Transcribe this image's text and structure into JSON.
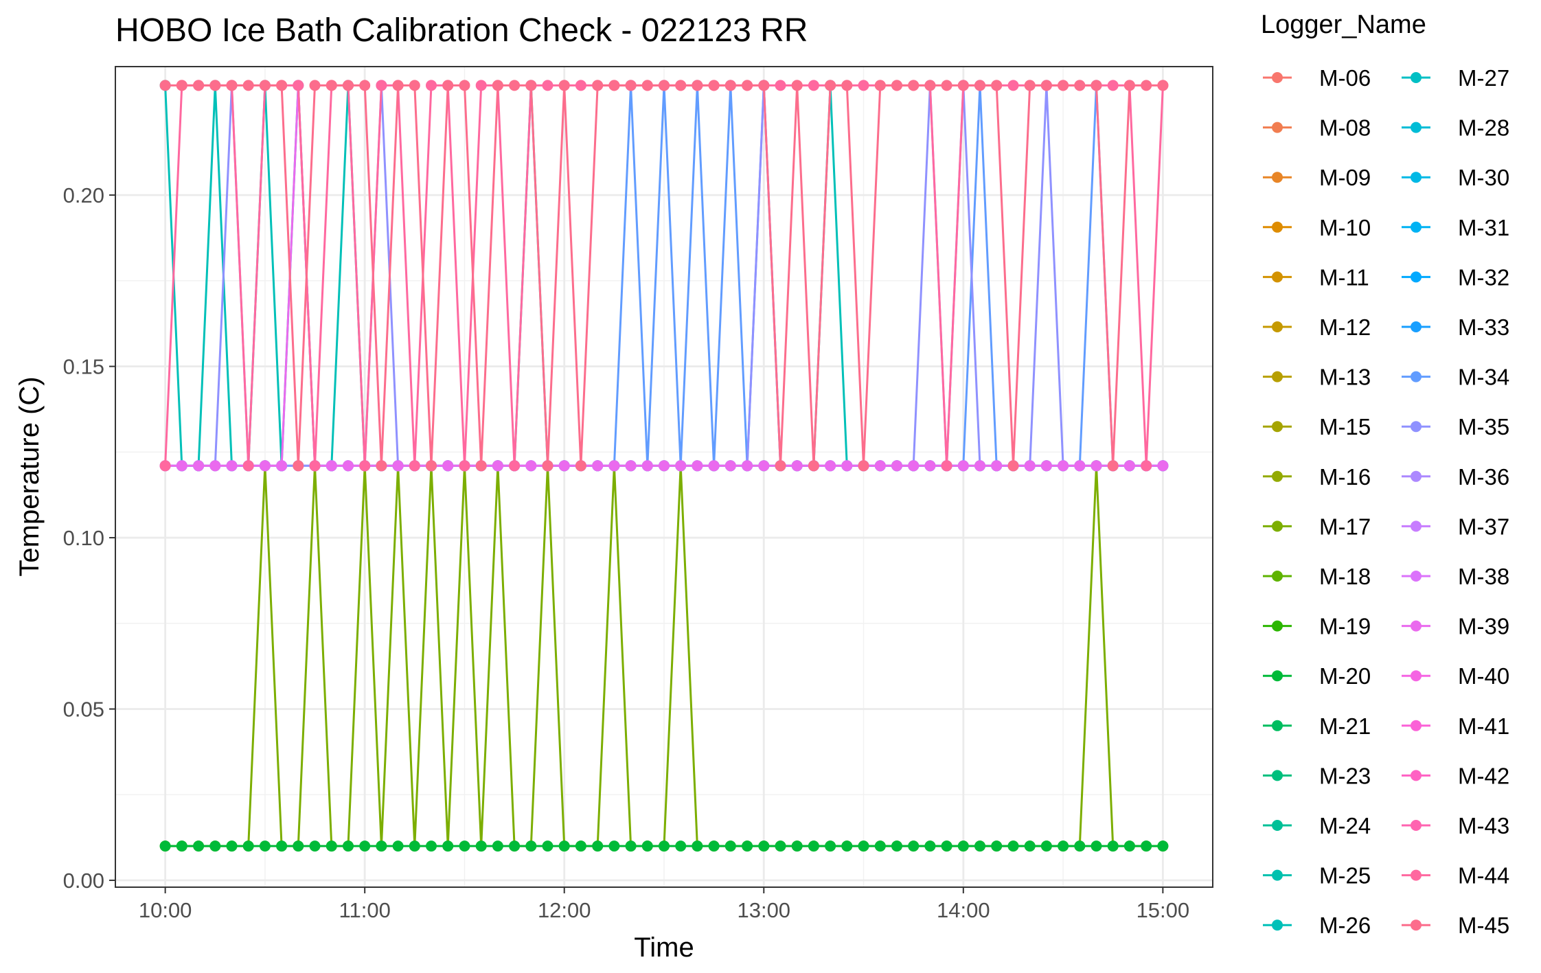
{
  "chart_data": {
    "type": "line",
    "title": "HOBO Ice Bath Calibration Check - 022123 RR",
    "xlabel": "Time",
    "ylabel": "Temperature (C)",
    "x_ticks": [
      "10:00",
      "11:00",
      "12:00",
      "13:00",
      "14:00",
      "15:00"
    ],
    "y_ticks": [
      "0.00",
      "0.05",
      "0.10",
      "0.15",
      "0.20"
    ],
    "xlim": [
      "09:45",
      "15:15"
    ],
    "ylim": [
      -0.002,
      0.2375
    ],
    "x_start": "10:00",
    "x_interval_minutes": 5,
    "x_end": "15:00",
    "measurement_levels": [
      0.01,
      0.121,
      0.232
    ],
    "grid": true,
    "legend": {
      "title": "Logger_Name",
      "position": "right",
      "columns": 2,
      "items": [
        {
          "name": "M-06",
          "color": "#F8766D"
        },
        {
          "name": "M-08",
          "color": "#F17D50"
        },
        {
          "name": "M-09",
          "color": "#E88526"
        },
        {
          "name": "M-10",
          "color": "#DE8C00"
        },
        {
          "name": "M-11",
          "color": "#D39200"
        },
        {
          "name": "M-12",
          "color": "#C59900"
        },
        {
          "name": "M-13",
          "color": "#B79F00"
        },
        {
          "name": "M-15",
          "color": "#A5A400"
        },
        {
          "name": "M-16",
          "color": "#93AA00"
        },
        {
          "name": "M-17",
          "color": "#7CAE00"
        },
        {
          "name": "M-18",
          "color": "#5EB300"
        },
        {
          "name": "M-19",
          "color": "#2BB600"
        },
        {
          "name": "M-20",
          "color": "#00BA38"
        },
        {
          "name": "M-21",
          "color": "#00BD5F"
        },
        {
          "name": "M-23",
          "color": "#00BF7D"
        },
        {
          "name": "M-24",
          "color": "#00C097"
        },
        {
          "name": "M-25",
          "color": "#00C1AE"
        },
        {
          "name": "M-26",
          "color": "#00C0B8"
        },
        {
          "name": "M-27",
          "color": "#00BFC4"
        },
        {
          "name": "M-28",
          "color": "#00BCD6"
        },
        {
          "name": "M-30",
          "color": "#00B8E5"
        },
        {
          "name": "M-31",
          "color": "#00B2F3"
        },
        {
          "name": "M-32",
          "color": "#00A9FF"
        },
        {
          "name": "M-33",
          "color": "#189FFF"
        },
        {
          "name": "M-34",
          "color": "#619CFF"
        },
        {
          "name": "M-35",
          "color": "#8F91FF"
        },
        {
          "name": "M-36",
          "color": "#AC88FF"
        },
        {
          "name": "M-37",
          "color": "#C77CFF"
        },
        {
          "name": "M-38",
          "color": "#DB72FB"
        },
        {
          "name": "M-39",
          "color": "#EA6AEE"
        },
        {
          "name": "M-40",
          "color": "#F564E3"
        },
        {
          "name": "M-41",
          "color": "#FB61D7"
        },
        {
          "name": "M-42",
          "color": "#FF61C3"
        },
        {
          "name": "M-43",
          "color": "#FF64B0"
        },
        {
          "name": "M-44",
          "color": "#FF689F"
        },
        {
          "name": "M-45",
          "color": "#FC6D8C"
        }
      ]
    },
    "series": [
      {
        "name": "M-17",
        "color": "#7CAE00",
        "y": [
          0.01,
          0.01,
          0.01,
          0.01,
          0.01,
          0.01,
          0.121,
          0.01,
          0.01,
          0.121,
          0.01,
          0.01,
          0.121,
          0.01,
          0.121,
          0.01,
          0.121,
          0.01,
          0.121,
          0.01,
          0.121,
          0.01,
          0.01,
          0.121,
          0.01,
          0.01,
          0.01,
          0.121,
          0.01,
          0.01,
          0.01,
          0.121,
          0.01,
          0.01,
          0.01,
          0.01,
          0.01,
          0.01,
          0.01,
          0.01,
          0.01,
          0.01,
          0.01,
          0.01,
          0.01,
          0.01,
          0.01,
          0.01,
          0.01,
          0.01,
          0.01,
          0.01,
          0.01,
          0.01,
          0.01,
          0.01,
          0.121,
          0.01,
          0.01,
          0.01,
          0.01
        ]
      },
      {
        "name": "M-20",
        "color": "#00BA38",
        "y": [
          0.01,
          0.01,
          0.01,
          0.01,
          0.01,
          0.01,
          0.01,
          0.01,
          0.01,
          0.01,
          0.01,
          0.01,
          0.01,
          0.01,
          0.01,
          0.01,
          0.01,
          0.01,
          0.01,
          0.01,
          0.01,
          0.01,
          0.01,
          0.01,
          0.01,
          0.01,
          0.01,
          0.01,
          0.01,
          0.01,
          0.01,
          0.01,
          0.01,
          0.01,
          0.01,
          0.01,
          0.01,
          0.01,
          0.01,
          0.01,
          0.01,
          0.01,
          0.01,
          0.01,
          0.01,
          0.01,
          0.01,
          0.01,
          0.01,
          0.01,
          0.01,
          0.01,
          0.01,
          0.01,
          0.01,
          0.01,
          0.01,
          0.01,
          0.01,
          0.01,
          0.01
        ]
      },
      {
        "name": "M-26",
        "color": "#00C0B8",
        "y": [
          0.232,
          0.121,
          0.121,
          0.232,
          0.121,
          0.121,
          0.232,
          0.121,
          0.232,
          0.121,
          0.121,
          0.232,
          0.121,
          0.121,
          0.121,
          0.121,
          0.121,
          0.121,
          0.121,
          0.121,
          0.121,
          0.121,
          0.232,
          0.121,
          0.121,
          0.121,
          0.121,
          0.121,
          0.121,
          0.121,
          0.121,
          0.121,
          0.121,
          0.121,
          0.121,
          0.121,
          0.121,
          0.121,
          0.121,
          0.121,
          0.232,
          0.121,
          0.121,
          0.121,
          0.121,
          0.121,
          0.121,
          0.121,
          0.121,
          0.121,
          0.121,
          0.121,
          0.121,
          0.121,
          0.121,
          0.121,
          0.121,
          0.121,
          0.121,
          0.121,
          0.121
        ]
      },
      {
        "name": "M-34",
        "color": "#619CFF",
        "y": [
          0.121,
          0.121,
          0.121,
          0.121,
          0.121,
          0.121,
          0.121,
          0.121,
          0.121,
          0.121,
          0.121,
          0.121,
          0.121,
          0.121,
          0.121,
          0.121,
          0.121,
          0.121,
          0.121,
          0.121,
          0.121,
          0.121,
          0.121,
          0.121,
          0.121,
          0.121,
          0.121,
          0.121,
          0.232,
          0.121,
          0.232,
          0.121,
          0.232,
          0.121,
          0.232,
          0.121,
          0.232,
          0.121,
          0.121,
          0.121,
          0.121,
          0.121,
          0.121,
          0.121,
          0.121,
          0.121,
          0.121,
          0.121,
          0.121,
          0.232,
          0.121,
          0.121,
          0.121,
          0.121,
          0.121,
          0.121,
          0.232,
          0.121,
          0.121,
          0.121,
          0.121
        ]
      },
      {
        "name": "M-35",
        "color": "#8F91FF",
        "y": [
          0.121,
          0.121,
          0.121,
          0.121,
          0.232,
          0.121,
          0.121,
          0.121,
          0.121,
          0.121,
          0.121,
          0.121,
          0.121,
          0.232,
          0.121,
          0.121,
          0.121,
          0.121,
          0.121,
          0.121,
          0.121,
          0.121,
          0.121,
          0.121,
          0.121,
          0.121,
          0.121,
          0.121,
          0.121,
          0.121,
          0.121,
          0.121,
          0.121,
          0.121,
          0.121,
          0.121,
          0.232,
          0.121,
          0.121,
          0.121,
          0.121,
          0.121,
          0.121,
          0.121,
          0.121,
          0.121,
          0.232,
          0.121,
          0.232,
          0.121,
          0.121,
          0.121,
          0.121,
          0.232,
          0.121,
          0.121,
          0.121,
          0.121,
          0.121,
          0.121,
          0.121
        ]
      },
      {
        "name": "M-39",
        "color": "#EA6AEE",
        "y": [
          0.121,
          0.121,
          0.121,
          0.121,
          0.121,
          0.121,
          0.121,
          0.121,
          0.232,
          0.121,
          0.121,
          0.121,
          0.121,
          0.121,
          0.121,
          0.121,
          0.121,
          0.121,
          0.121,
          0.121,
          0.121,
          0.121,
          0.121,
          0.121,
          0.121,
          0.121,
          0.121,
          0.121,
          0.121,
          0.121,
          0.121,
          0.121,
          0.121,
          0.121,
          0.121,
          0.121,
          0.121,
          0.121,
          0.121,
          0.121,
          0.121,
          0.121,
          0.121,
          0.121,
          0.121,
          0.121,
          0.121,
          0.121,
          0.121,
          0.121,
          0.121,
          0.121,
          0.121,
          0.121,
          0.121,
          0.121,
          0.121,
          0.121,
          0.121,
          0.121,
          0.121
        ]
      },
      {
        "name": "M-44",
        "color": "#FF689F",
        "y": [
          0.121,
          0.232,
          0.232,
          0.232,
          0.232,
          0.121,
          0.232,
          0.232,
          0.232,
          0.121,
          0.232,
          0.232,
          0.121,
          0.232,
          0.232,
          0.121,
          0.232,
          0.232,
          0.121,
          0.232,
          0.232,
          0.121,
          0.232,
          0.232,
          0.232,
          0.232,
          0.232,
          0.232,
          0.232,
          0.232,
          0.232,
          0.232,
          0.232,
          0.232,
          0.232,
          0.232,
          0.232,
          0.232,
          0.232,
          0.232,
          0.232,
          0.232,
          0.232,
          0.232,
          0.232,
          0.232,
          0.232,
          0.121,
          0.232,
          0.232,
          0.232,
          0.232,
          0.232,
          0.232,
          0.232,
          0.232,
          0.232,
          0.232,
          0.232,
          0.121,
          0.232
        ]
      },
      {
        "name": "M-45",
        "color": "#FC6D8C",
        "y": [
          0.232,
          0.232,
          0.232,
          0.232,
          0.232,
          0.232,
          0.232,
          0.232,
          0.121,
          0.232,
          0.232,
          0.232,
          0.232,
          0.121,
          0.232,
          0.232,
          0.121,
          0.232,
          0.232,
          0.121,
          0.232,
          0.232,
          0.232,
          0.121,
          0.232,
          0.121,
          0.232,
          0.232,
          0.232,
          0.232,
          0.232,
          0.232,
          0.232,
          0.232,
          0.232,
          0.232,
          0.232,
          0.121,
          0.232,
          0.121,
          0.232,
          0.232,
          0.121,
          0.232,
          0.232,
          0.232,
          0.232,
          0.232,
          0.232,
          0.232,
          0.232,
          0.121,
          0.232,
          0.232,
          0.232,
          0.232,
          0.232,
          0.121,
          0.232,
          0.232,
          0.232
        ]
      }
    ]
  }
}
